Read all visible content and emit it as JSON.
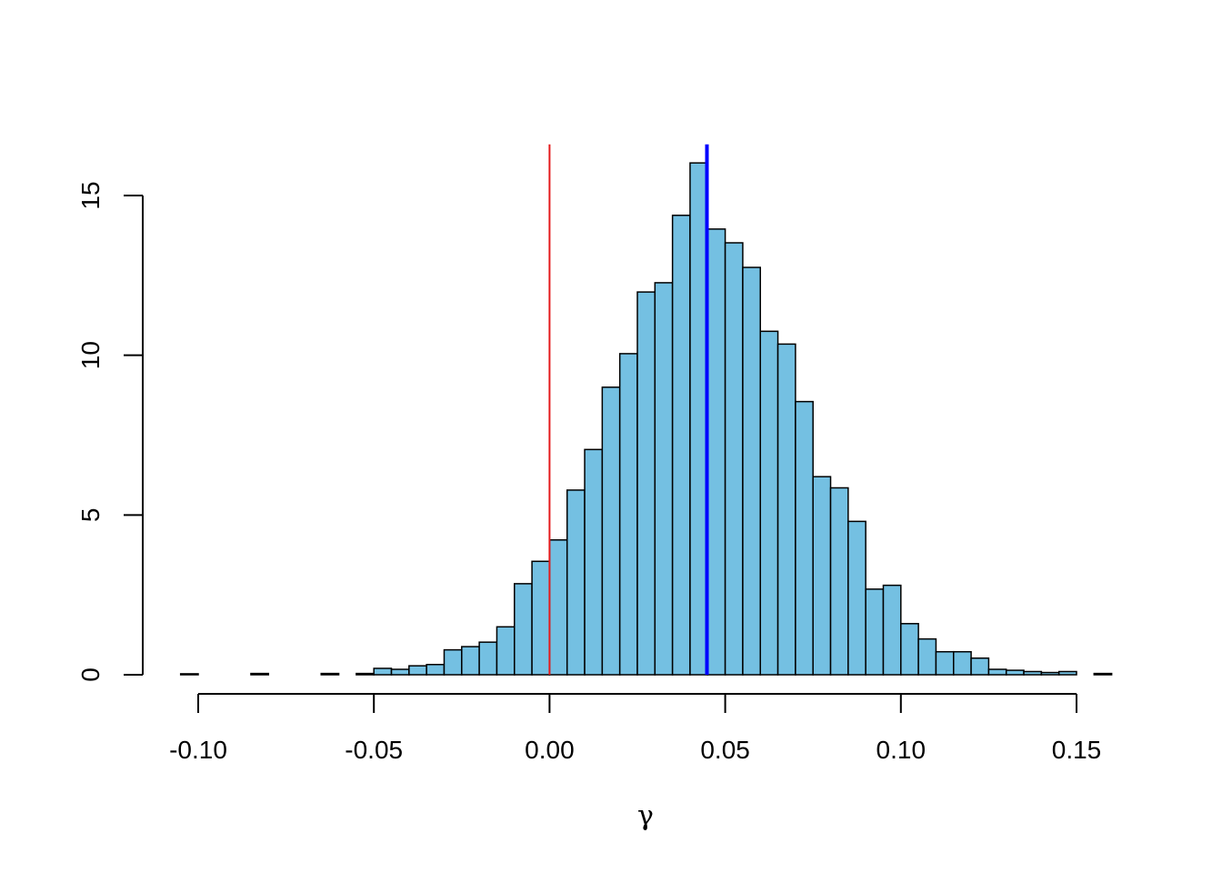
{
  "chart_data": {
    "type": "bar",
    "title": "",
    "xlabel": "γ",
    "ylabel": "",
    "bin_width": 0.005,
    "bin_start": -0.105,
    "x_axis_range": [
      -0.105,
      0.16
    ],
    "ylim": [
      0,
      16.6
    ],
    "x_ticks": [
      -0.1,
      -0.05,
      0.0,
      0.05,
      0.1,
      0.15
    ],
    "x_tick_labels": [
      "-0.10",
      "-0.05",
      "0.00",
      "0.05",
      "0.10",
      "0.15"
    ],
    "y_ticks": [
      0,
      5,
      10,
      15
    ],
    "y_tick_labels": [
      "0",
      "5",
      "10",
      "15"
    ],
    "values": [
      0.03,
      0.0,
      0.0,
      0.0,
      0.04,
      0.0,
      0.0,
      0.0,
      0.04,
      0.0,
      0.04,
      0.2,
      0.17,
      0.28,
      0.32,
      0.78,
      0.88,
      1.02,
      1.5,
      2.85,
      3.55,
      4.22,
      5.78,
      7.05,
      9.0,
      10.05,
      11.98,
      12.27,
      14.38,
      16.02,
      13.95,
      13.52,
      12.75,
      10.75,
      10.35,
      8.55,
      6.2,
      5.85,
      4.8,
      2.68,
      2.8,
      1.6,
      1.12,
      0.72,
      0.72,
      0.52,
      0.17,
      0.14,
      0.1,
      0.07,
      0.1,
      0.0,
      0.04
    ],
    "bar_color": "#74c0e2",
    "reference_lines": [
      {
        "x": 0.0,
        "color": "#e41a1c",
        "width": "thin"
      },
      {
        "x": 0.0448,
        "color": "#0000ff",
        "width": "thick"
      }
    ],
    "grid": false,
    "legend": "none"
  }
}
